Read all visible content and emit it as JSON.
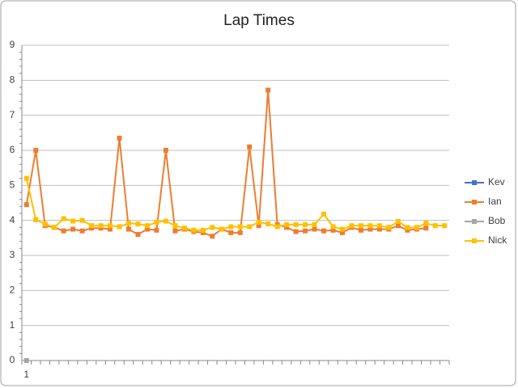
{
  "chart_data": {
    "type": "line",
    "title": "Lap Times",
    "categories": [
      "1",
      null,
      null,
      null,
      null,
      null,
      null,
      null,
      null,
      null,
      null,
      null,
      null,
      null,
      null,
      null,
      null,
      null,
      null,
      null,
      null,
      null,
      null,
      null,
      null,
      null,
      null,
      null,
      null,
      null,
      null,
      null,
      null,
      null,
      null,
      null,
      null,
      null,
      null,
      null,
      null,
      null,
      null,
      null,
      null,
      null
    ],
    "series": [
      {
        "name": "Kev",
        "color": "#4472c4",
        "values": [
          null,
          null,
          null,
          null,
          null,
          null,
          null,
          null,
          null,
          null,
          null,
          null,
          null,
          null,
          null,
          null,
          null,
          null,
          null,
          null,
          null,
          null,
          null,
          null,
          null,
          null,
          null,
          null,
          null,
          null,
          null,
          null,
          null,
          null,
          null,
          null,
          null,
          null,
          null,
          null,
          null,
          null,
          null,
          null,
          null,
          null
        ]
      },
      {
        "name": "Ian",
        "color": "#ed7d31",
        "values": [
          4.45,
          6.0,
          3.85,
          3.8,
          3.7,
          3.75,
          3.7,
          3.78,
          3.78,
          3.75,
          6.35,
          3.75,
          3.6,
          3.75,
          3.72,
          6.0,
          3.7,
          3.75,
          3.68,
          3.65,
          3.55,
          3.75,
          3.65,
          3.65,
          6.1,
          3.85,
          7.72,
          3.88,
          3.8,
          3.68,
          3.7,
          3.75,
          3.7,
          3.72,
          3.65,
          3.8,
          3.72,
          3.75,
          3.75,
          3.75,
          3.85,
          3.72,
          3.75,
          3.78,
          null,
          null
        ]
      },
      {
        "name": "Bob",
        "color": "#a5a5a5",
        "values": [
          0,
          null,
          null,
          null,
          null,
          null,
          null,
          null,
          null,
          null,
          null,
          null,
          null,
          null,
          null,
          null,
          null,
          null,
          null,
          null,
          null,
          null,
          null,
          null,
          null,
          null,
          null,
          null,
          null,
          null,
          null,
          null,
          null,
          null,
          null,
          null,
          null,
          null,
          null,
          null,
          null,
          null,
          null,
          null,
          null,
          null
        ]
      },
      {
        "name": "Nick",
        "color": "#ffc000",
        "values": [
          5.2,
          4.02,
          3.9,
          3.8,
          4.05,
          3.98,
          4.0,
          3.85,
          3.85,
          3.85,
          3.82,
          3.92,
          3.9,
          3.85,
          3.95,
          3.98,
          3.85,
          3.78,
          3.72,
          3.72,
          3.8,
          3.75,
          3.82,
          3.82,
          3.82,
          3.95,
          3.9,
          3.82,
          3.88,
          3.88,
          3.88,
          3.88,
          4.18,
          3.82,
          3.75,
          3.85,
          3.85,
          3.85,
          3.85,
          3.8,
          3.97,
          3.8,
          3.8,
          3.92,
          3.85,
          3.85
        ]
      }
    ],
    "ylim": [
      0,
      9
    ],
    "yticks": [
      0,
      1,
      2,
      3,
      4,
      5,
      6,
      7,
      8,
      9
    ],
    "grid": true,
    "legend": "right"
  }
}
